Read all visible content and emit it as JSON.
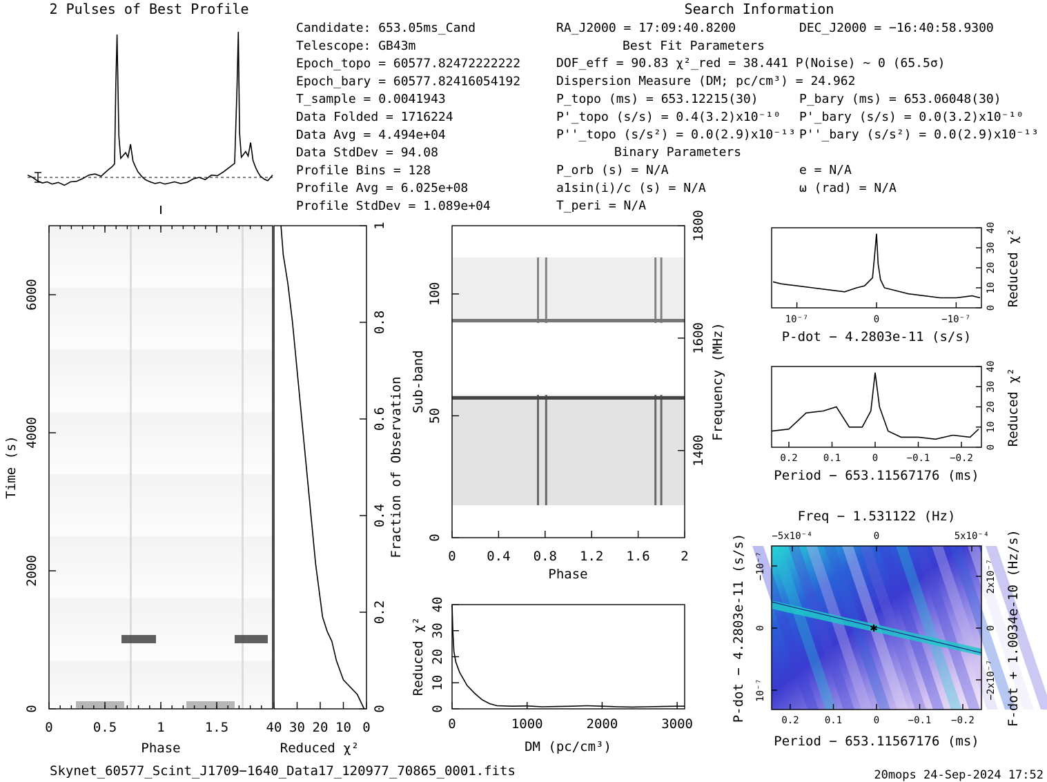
{
  "profile_title": "2 Pulses of Best Profile",
  "search_title": "Search Information",
  "info_left": [
    "Candidate:  653.05ms_Cand",
    "Telescope:  GB43m",
    "Epoch_topo = 60577.82472222222",
    "Epoch_bary = 60577.82416054192",
    "T_sample      =  0.0041943",
    "Data Folded   =  1716224",
    "Data Avg      =  4.494e+04",
    "Data StdDev   =  94.08",
    "Profile Bins  =  128",
    "Profile Avg   =  6.025e+08",
    "Profile StdDev =  1.089e+04"
  ],
  "info_ra": "RA_J2000 = 17:09:40.8200",
  "info_dec": "DEC_J2000 = −16:40:58.9300",
  "best_fit_title": "Best Fit Parameters",
  "fit_lines": [
    "DOF_eff = 90.83  χ²_red = 38.441   P(Noise) ~ 0    (65.5σ)",
    "Dispersion Measure (DM; pc/cm³) = 24.962",
    "P_topo (ms) =  653.12215(30)",
    "P'_topo (s/s) =  0.4(3.2)x10⁻¹⁰",
    "P''_topo (s/s²) = 0.0(2.9)x10⁻¹³"
  ],
  "fit_bary": [
    "P_bary (ms) =  653.06048(30)",
    "P'_bary (s/s) = 0.0(3.2)x10⁻¹⁰",
    "P''_bary (s/s²) = 0.0(2.9)x10⁻¹³"
  ],
  "binary_title": "Binary Parameters",
  "binary_left": [
    "P_orb (s) = N/A",
    "a1sin(i)/c (s) = N/A",
    "T_peri = N/A"
  ],
  "binary_right": [
    "e = N/A",
    "ω (rad) = N/A"
  ],
  "footer_file": "Skynet_60577_Scint_J1709−1640_Data17_120977_70865_0001.fits",
  "footer_stamp": "20mops 24-Sep-2024 17:52",
  "chart_data": [
    {
      "type": "line",
      "title": "2 Pulses of Best Profile",
      "x": [
        0.0,
        0.04,
        0.08,
        0.12,
        0.16,
        0.2,
        0.25,
        0.3,
        0.35,
        0.4,
        0.45,
        0.5,
        0.55,
        0.6,
        0.63,
        0.66,
        0.69,
        0.71,
        0.72,
        0.73,
        0.745,
        0.76,
        0.78,
        0.8,
        0.82,
        0.84,
        0.86,
        0.88,
        0.9,
        0.93,
        0.96,
        1.0,
        1.04,
        1.08,
        1.12,
        1.16,
        1.2,
        1.25,
        1.3,
        1.35,
        1.4,
        1.45,
        1.5,
        1.55,
        1.6,
        1.63,
        1.66,
        1.69,
        1.71,
        1.72,
        1.73,
        1.745,
        1.76,
        1.78,
        1.8,
        1.82,
        1.84,
        1.86,
        1.88,
        1.9,
        1.93,
        1.96,
        2.0
      ],
      "y": [
        1.0,
        0.6,
        0.0,
        -0.4,
        -0.2,
        -0.6,
        -0.3,
        -0.8,
        -0.2,
        -0.1,
        0.4,
        1.0,
        1.2,
        0.8,
        1.4,
        2.0,
        2.5,
        3.0,
        17.0,
        26.0,
        8.0,
        4.0,
        4.5,
        5.0,
        4.2,
        6.5,
        3.5,
        2.5,
        1.6,
        0.8,
        0.2,
        -0.2,
        -0.5,
        -0.3,
        -0.6,
        -0.4,
        -0.2,
        -0.5,
        -0.3,
        0.3,
        0.6,
        0.2,
        1.0,
        0.9,
        1.6,
        2.1,
        2.6,
        3.1,
        17.0,
        26.5,
        8.5,
        4.2,
        4.6,
        5.2,
        4.4,
        6.8,
        3.6,
        2.4,
        1.5,
        0.8,
        0.3,
        0.0,
        1.0
      ]
    },
    {
      "type": "heatmap",
      "xlabel": "Phase",
      "ylabel": "Time (s)",
      "xlim": [
        0,
        2
      ],
      "ylim": [
        0,
        7000
      ],
      "xticks": [
        "0",
        "0.5",
        "1",
        "1.5"
      ],
      "yticks": [
        "0",
        "2000",
        "4000",
        "6000"
      ]
    },
    {
      "type": "line",
      "xlabel": "Reduced χ²",
      "ylabel": "Fraction of Observation",
      "xlim": [
        40,
        0
      ],
      "ylim": [
        0,
        1
      ],
      "xticks": [
        "40",
        "30",
        "20",
        "10",
        "0"
      ],
      "yticks": [
        "0",
        "0.2",
        "0.4",
        "0.6",
        "0.8",
        "1"
      ],
      "x": [
        1,
        4,
        10,
        13,
        15,
        17,
        19,
        22,
        24,
        26,
        28,
        30,
        32,
        34,
        36,
        37
      ],
      "y": [
        0.0,
        0.03,
        0.06,
        0.1,
        0.14,
        0.16,
        0.19,
        0.3,
        0.4,
        0.5,
        0.6,
        0.7,
        0.8,
        0.88,
        0.94,
        1.0
      ]
    },
    {
      "type": "heatmap",
      "xlabel": "Phase",
      "ylabel": "Sub-band",
      "y2label": "Frequency (MHz)",
      "xlim": [
        0,
        2
      ],
      "ylim": [
        0,
        128
      ],
      "xticks": [
        "0",
        "0.4",
        "0.8",
        "1.2",
        "1.6",
        "2"
      ],
      "yticks": [
        "0",
        "50",
        "100"
      ],
      "y2ticks": [
        "1400",
        "1600",
        "1800"
      ]
    },
    {
      "type": "line",
      "xlabel": "DM (pc/cm³)",
      "ylabel": "Reduced χ²",
      "xlim": [
        0,
        3100
      ],
      "ylim": [
        0,
        40
      ],
      "xticks": [
        "0",
        "1000",
        "2000",
        "3000"
      ],
      "yticks": [
        "0",
        "10",
        "20",
        "30",
        "40"
      ],
      "x": [
        0,
        10,
        25,
        50,
        100,
        200,
        300,
        400,
        500,
        600,
        800,
        1000,
        1200,
        1400,
        1600,
        1800,
        2000,
        2200,
        2400,
        2600,
        2800,
        3000,
        3100
      ],
      "y": [
        40,
        30,
        22,
        18,
        14,
        9,
        6,
        3.5,
        2,
        1.2,
        1.0,
        1.1,
        0.8,
        0.9,
        1.0,
        1.2,
        1.0,
        0.8,
        0.7,
        0.8,
        0.9,
        1.0,
        1.0
      ]
    },
    {
      "type": "line",
      "xlabel": "P-dot − 4.2803e-11 (s/s)",
      "ylabel": "Reduced χ²",
      "ylim": [
        0,
        40
      ],
      "xticks": [
        "10⁻⁷",
        "0",
        "−10⁻⁷"
      ],
      "yticks": [
        "0",
        "10",
        "20",
        "30",
        "40"
      ],
      "x": [
        1.3,
        1.2,
        1.0,
        0.8,
        0.6,
        0.4,
        0.25,
        0.15,
        0.05,
        0.02,
        0.0,
        -0.02,
        -0.05,
        -0.1,
        -0.2,
        -0.4,
        -0.6,
        -0.8,
        -1.0,
        -1.2,
        -1.3
      ],
      "y": [
        13,
        12,
        11,
        10,
        9,
        8,
        10,
        11,
        15,
        28,
        37,
        22,
        14,
        10,
        9,
        7,
        6,
        5,
        5,
        6,
        5
      ]
    },
    {
      "type": "line",
      "xlabel": "Period − 653.11567176 (ms)",
      "ylabel": "Reduced χ²",
      "ylim": [
        0,
        40
      ],
      "xticks": [
        "0.2",
        "0.1",
        "0",
        "−0.1",
        "−0.2"
      ],
      "yticks": [
        "0",
        "10",
        "20",
        "30",
        "40"
      ],
      "x": [
        0.24,
        0.2,
        0.16,
        0.12,
        0.09,
        0.06,
        0.03,
        0.01,
        0.0,
        -0.01,
        -0.03,
        -0.06,
        -0.1,
        -0.14,
        -0.18,
        -0.22,
        -0.24
      ],
      "y": [
        8,
        9,
        17,
        18,
        20,
        10,
        10,
        18,
        37,
        20,
        8,
        5,
        5,
        4,
        6,
        5,
        9
      ]
    },
    {
      "type": "heatmap",
      "title": "Freq − 1.531122 (Hz)",
      "xlabel": "Period − 653.11567176 (ms)",
      "ylabel": "P-dot − 4.2803e-11 (s/s)",
      "y2label": "F-dot + 1.0034e-10 (Hz/s)",
      "xticks": [
        "0.2",
        "0.1",
        "0",
        "−0.1",
        "−0.2"
      ],
      "x2ticks": [
        "−5x10⁻⁴",
        "0",
        "5x10⁻⁴"
      ],
      "yticks": [
        "−10⁻⁷",
        "0",
        "10⁻⁷"
      ],
      "y2ticks": [
        "2x10⁻⁷",
        "0",
        "−2x10⁻⁷"
      ]
    }
  ]
}
